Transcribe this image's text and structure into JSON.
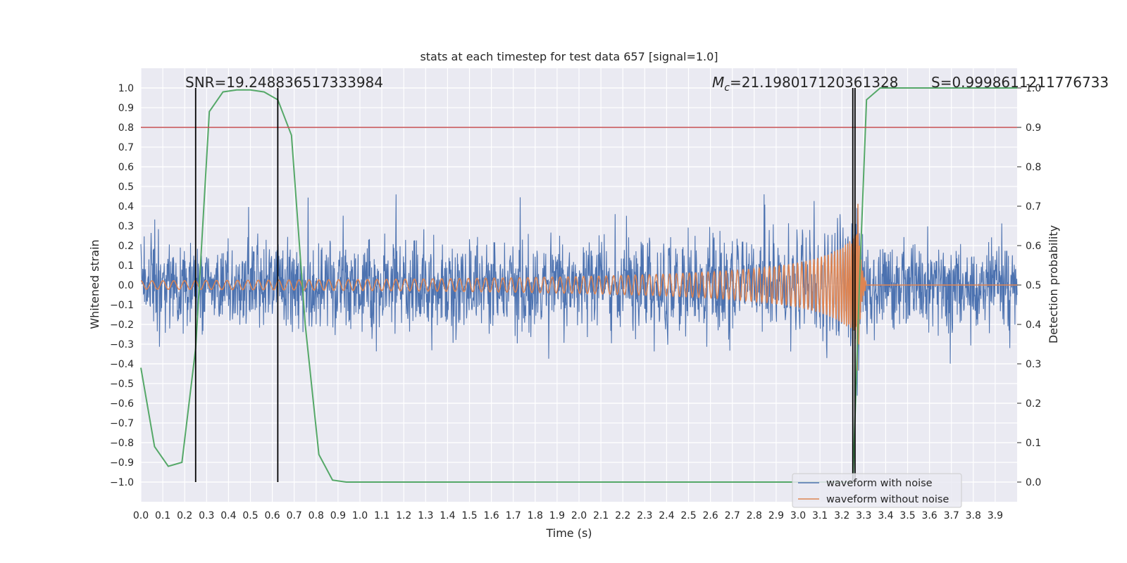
{
  "chart_data": {
    "type": "line",
    "title": "stats at each timestep for test data 657 [signal=1.0]",
    "xlabel": "Time (s)",
    "ylabel_left": "Whitened strain",
    "ylabel_right": "Detection probability",
    "xlim": [
      0.0,
      4.0
    ],
    "ylim_left": [
      -1.1,
      1.1
    ],
    "ylim_right": [
      -0.05,
      1.05
    ],
    "x_ticks": [
      "0.0",
      "0.1",
      "0.2",
      "0.3",
      "0.4",
      "0.5",
      "0.6",
      "0.7",
      "0.8",
      "0.9",
      "1.0",
      "1.1",
      "1.2",
      "1.3",
      "1.4",
      "1.5",
      "1.6",
      "1.7",
      "1.8",
      "1.9",
      "2.0",
      "2.1",
      "2.2",
      "2.3",
      "2.4",
      "2.5",
      "2.6",
      "2.7",
      "2.8",
      "2.9",
      "3.0",
      "3.1",
      "3.2",
      "3.3",
      "3.4",
      "3.5",
      "3.6",
      "3.7",
      "3.8",
      "3.9"
    ],
    "y_ticks_left": [
      "1.0",
      "0.9",
      "0.8",
      "0.7",
      "0.6",
      "0.5",
      "0.4",
      "0.3",
      "0.2",
      "0.1",
      "0.0",
      "−0.1",
      "−0.2",
      "−0.3",
      "−0.4",
      "−0.5",
      "−0.6",
      "−0.7",
      "−0.8",
      "−0.9",
      "−1.0"
    ],
    "y_ticks_right": [
      "1.0",
      "0.9",
      "0.8",
      "0.7",
      "0.6",
      "0.5",
      "0.4",
      "0.3",
      "0.2",
      "0.1",
      "0.0"
    ],
    "annotations": {
      "snr": "SNR=19.248836517333984",
      "mc_symbol": "M",
      "mc_sub": "c",
      "mc_value": "=21.198017120361328",
      "s": "S=0.9998611211776733"
    },
    "legend": [
      "waveform with noise",
      "waveform without noise"
    ],
    "colors": {
      "noise": "#4c72b0",
      "clean": "#dd8452",
      "probability": "#55a868",
      "threshold": "#c44e52",
      "vlines": "#000000",
      "plot_bg": "#eaeaf2",
      "grid": "#ffffff"
    },
    "threshold_probability": 0.9,
    "vlines_x": [
      0.25,
      0.625,
      3.25,
      3.26
    ],
    "noise_amplitude": 0.5,
    "merger_time": 3.27,
    "detection_probability": {
      "x": [
        0.0,
        0.0625,
        0.125,
        0.1875,
        0.25,
        0.3125,
        0.375,
        0.4375,
        0.5,
        0.5625,
        0.625,
        0.6875,
        0.75,
        0.8125,
        0.875,
        0.9375,
        1.0,
        1.5,
        2.0,
        2.5,
        3.0,
        3.125,
        3.1875,
        3.23,
        3.25,
        3.28,
        3.3125,
        3.375,
        3.5,
        3.75,
        4.0
      ],
      "y": [
        0.29,
        0.09,
        0.04,
        0.05,
        0.34,
        0.94,
        0.99,
        0.995,
        0.995,
        0.99,
        0.97,
        0.88,
        0.4,
        0.07,
        0.005,
        0.0,
        0.0,
        0.0,
        0.0,
        0.0,
        0.0,
        0.0,
        0.0,
        0.0,
        0.0,
        0.5,
        0.97,
        1.0,
        1.0,
        1.0,
        1.0
      ]
    }
  }
}
